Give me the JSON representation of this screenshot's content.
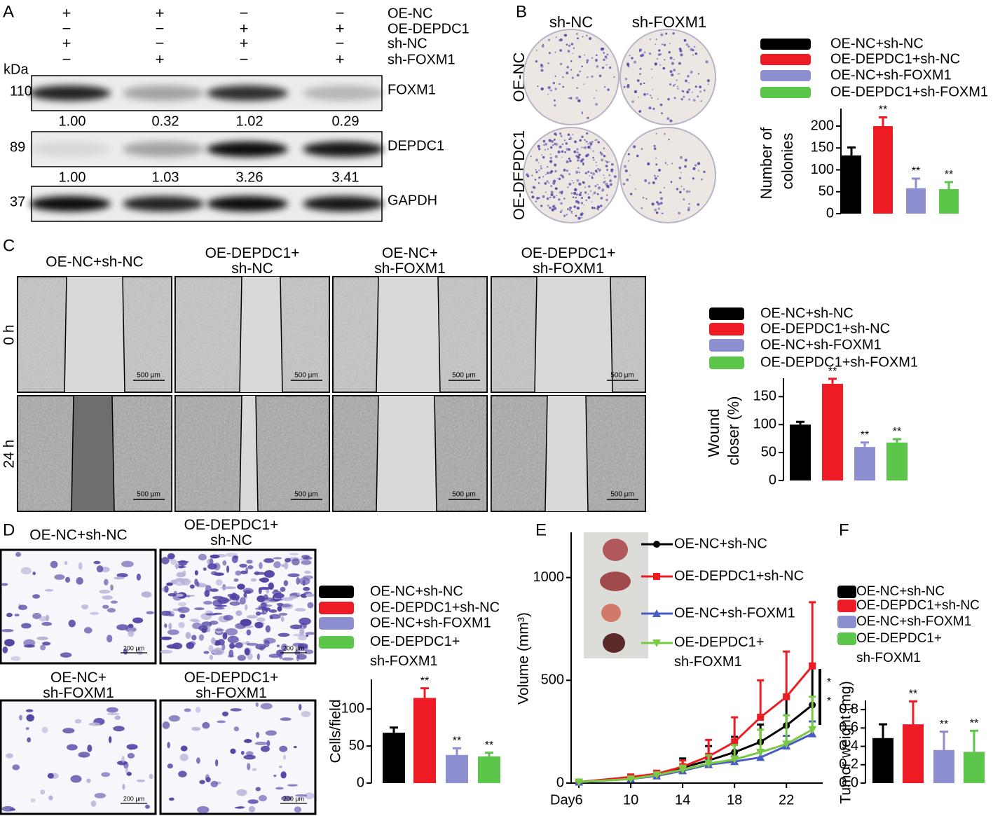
{
  "panel_letters": [
    "A",
    "B",
    "C",
    "D",
    "E",
    "F"
  ],
  "blot": {
    "kda": "kDa",
    "conditions": [
      {
        "name": "OE-NC",
        "signs": [
          "+",
          "+",
          "−",
          "−"
        ]
      },
      {
        "name": "OE-DEPDC1",
        "signs": [
          "−",
          "−",
          "+",
          "+"
        ]
      },
      {
        "name": "sh-NC",
        "signs": [
          "+",
          "−",
          "+",
          "−"
        ]
      },
      {
        "name": "sh-FOXM1",
        "signs": [
          "−",
          "+",
          "−",
          "+"
        ]
      }
    ],
    "rows": [
      {
        "kda": "110",
        "protein": "FOXM1",
        "quant": [
          "1.00",
          "0.32",
          "1.02",
          "0.29"
        ]
      },
      {
        "kda": "89",
        "protein": "DEPDC1",
        "quant": [
          "1.00",
          "1.03",
          "3.26",
          "3.41"
        ]
      },
      {
        "kda": "37",
        "protein": "GAPDH"
      }
    ]
  },
  "colony": {
    "columns": [
      "sh-NC",
      "sh-FOXM1"
    ],
    "rows": [
      "OE-NC",
      "OE-DEPDC1"
    ]
  },
  "wound": {
    "groups": [
      "OE-NC+sh-NC",
      "OE-DEPDC1+sh-NC",
      "OE-NC+sh-FOXM1",
      "OE-DEPDC1+sh-FOXM1"
    ],
    "times": [
      "0 h",
      "24 h"
    ],
    "scale_bar": "500 μm"
  },
  "transwell": {
    "groups": [
      "OE-NC+sh-NC",
      "OE-DEPDC1+sh-NC",
      "OE-NC+sh-FOXM1",
      "OE-DEPDC1+sh-FOXM1"
    ],
    "scale_bar": "200 μm"
  },
  "chart_data": [
    {
      "type": "bar",
      "categories": [
        "OE-NC+sh-NC",
        "OE-DEPDC1+sh-NC",
        "OE-NC+sh-FOXM1",
        "OE-DEPDC1+sh-FOXM1"
      ],
      "values": [
        133,
        200,
        58,
        56
      ],
      "errors": [
        18,
        20,
        22,
        16
      ],
      "colors": [
        "#000000",
        "#ed1c24",
        "#8e8fd1",
        "#5cc64a"
      ],
      "significance": [
        null,
        "**",
        "**",
        "**"
      ],
      "ylabel": "Number of colonies",
      "ylim": [
        0,
        240
      ],
      "yticks": [
        0,
        50,
        100,
        150,
        200
      ]
    },
    {
      "type": "bar",
      "categories": [
        "OE-NC+sh-NC",
        "OE-DEPDC1+sh-NC",
        "OE-NC+sh-FOXM1",
        "OE-DEPDC1+sh-FOXM1"
      ],
      "values": [
        100,
        173,
        60,
        68
      ],
      "errors": [
        5,
        9,
        8,
        6
      ],
      "colors": [
        "#000000",
        "#ed1c24",
        "#8e8fd1",
        "#5cc64a"
      ],
      "significance": [
        null,
        "**",
        "**",
        "**"
      ],
      "ylabel": "Wound closer (%)",
      "ylim": [
        0,
        183
      ],
      "yticks": [
        0,
        50,
        100,
        150
      ]
    },
    {
      "type": "bar",
      "categories": [
        "OE-NC+sh-NC",
        "OE-DEPDC1+sh-NC",
        "OE-NC+sh-FOXM1",
        "OE-DEPDC1+sh-FOXM1"
      ],
      "values": [
        68,
        115,
        38,
        36
      ],
      "errors": [
        7,
        13,
        9,
        5
      ],
      "colors": [
        "#000000",
        "#ed1c24",
        "#8e8fd1",
        "#5cc64a"
      ],
      "significance": [
        null,
        "**",
        "**",
        "**"
      ],
      "ylabel": "Cells/field",
      "ylim": [
        0,
        140
      ],
      "yticks": [
        0,
        50,
        100
      ]
    },
    {
      "type": "line",
      "x": [
        6,
        10,
        12,
        14,
        16,
        18,
        20,
        22,
        24
      ],
      "xlim": [
        5.4,
        24.8
      ],
      "xticks": [
        6,
        10,
        14,
        18,
        22
      ],
      "xlabel": "Day",
      "ylabel": "Volume (mm³)",
      "ylim": [
        0,
        1220
      ],
      "yticks": [
        0,
        500,
        1000
      ],
      "annotations": [
        "*",
        "*"
      ],
      "series": [
        {
          "name": "OE-NC+sh-NC",
          "color": "#000000",
          "marker": "circle",
          "values": [
            5,
            25,
            40,
            75,
            110,
            150,
            200,
            280,
            380
          ],
          "errors": [
            5,
            10,
            15,
            45,
            70,
            75,
            85,
            140,
            200
          ]
        },
        {
          "name": "OE-DEPDC1+sh-NC",
          "color": "#ed1c24",
          "marker": "square",
          "values": [
            5,
            30,
            45,
            80,
            130,
            200,
            320,
            420,
            570
          ],
          "errors": [
            5,
            10,
            15,
            30,
            80,
            120,
            180,
            220,
            310
          ]
        },
        {
          "name": "OE-NC+sh-FOXM1",
          "color": "#4a5bc4",
          "marker": "triangle",
          "values": [
            5,
            20,
            35,
            60,
            90,
            105,
            125,
            180,
            240
          ],
          "errors": [
            3,
            8,
            10,
            15,
            20,
            25,
            35,
            50,
            60
          ]
        },
        {
          "name": "OE-DEPDC1+sh-FOXM1",
          "color": "#7ac943",
          "marker": "triangle-down",
          "values": [
            5,
            20,
            40,
            65,
            95,
            115,
            150,
            190,
            260
          ],
          "errors": [
            3,
            8,
            10,
            20,
            40,
            70,
            110,
            140,
            160
          ]
        }
      ]
    },
    {
      "type": "bar",
      "categories": [
        "OE-NC+sh-NC",
        "OE-DEPDC1+sh-NC",
        "OE-NC+sh-FOXM1",
        "OE-DEPDC1+sh-FOXM1"
      ],
      "values": [
        0.49,
        0.64,
        0.36,
        0.34
      ],
      "errors": [
        0.15,
        0.25,
        0.2,
        0.23
      ],
      "colors": [
        "#000000",
        "#ed1c24",
        "#8e8fd1",
        "#5cc64a"
      ],
      "significance": [
        null,
        "**",
        "**",
        "**"
      ],
      "ylabel": "Tumor weight (mg)",
      "ylim": [
        0,
        0.9
      ],
      "yticks": [
        {
          "value": 0,
          "label": "0.0"
        },
        0.2,
        0.4,
        0.6,
        0.8
      ]
    }
  ]
}
